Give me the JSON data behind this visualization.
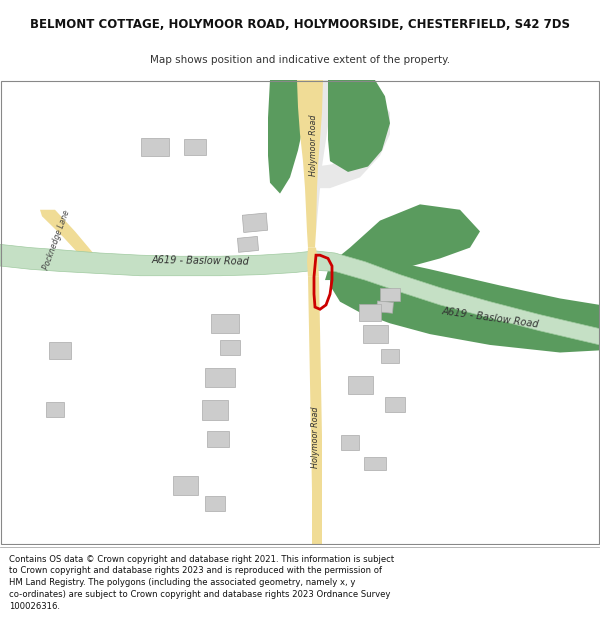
{
  "title_line1": "BELMONT COTTAGE, HOLYMOOR ROAD, HOLYMOORSIDE, CHESTERFIELD, S42 7DS",
  "title_line2": "Map shows position and indicative extent of the property.",
  "footer_lines": [
    "Contains OS data © Crown copyright and database right 2021. This information is subject to Crown copyright and database rights 2023 and is reproduced with the permission of",
    "HM Land Registry. The polygons (including the associated geometry, namely x, y co-ordinates) are subject to Crown copyright and database rights 2023 Ordnance Survey",
    "100026316."
  ],
  "bg_color": "#ffffff",
  "map_bg": "#f7f7f7",
  "green_fill": "#5a9b5e",
  "green_road_light": "#c5e0c5",
  "green_road_dark": "#90c090",
  "yellow_road": "#f0dc96",
  "gray_road": "#d0d0d0",
  "white_road": "#eeeeee",
  "building_fill": "#cccccc",
  "building_edge": "#aaaaaa",
  "plot_red": "#cc0000",
  "text_dark": "#333333",
  "title_color": "#111111"
}
